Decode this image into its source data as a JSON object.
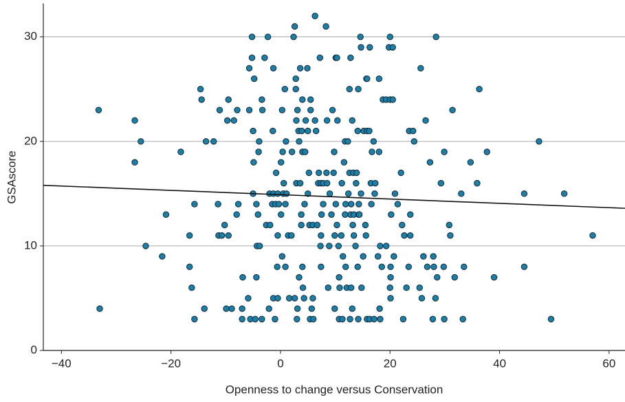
{
  "chart_data": {
    "type": "scatter",
    "x_label": "Openness to change versus Conservation",
    "y_label": "GSAscore",
    "xlim": [
      -43.3,
      62.9
    ],
    "ylim": [
      0,
      33.2
    ],
    "xticks": [
      {
        "value": -40,
        "label": "−40"
      },
      {
        "value": -20,
        "label": "−20"
      },
      0,
      20,
      40,
      60
    ],
    "yticks": [
      0,
      10,
      20,
      30
    ],
    "grid": true,
    "color": "#1f7ea6",
    "fit_line": {
      "x": [
        -43.3,
        62.9
      ],
      "y": [
        15.8,
        13.6
      ],
      "color": "#111111"
    },
    "x": [
      -33,
      -33.2,
      -26.6,
      -25.5,
      -26.6,
      -24.6,
      -21.6,
      -20.9,
      -18.2,
      -16.6,
      -16.6,
      -16.2,
      -15.7,
      -15.7,
      -14.6,
      -14.4,
      -13.9,
      -13.6,
      -12.2,
      -11.4,
      -11.3,
      -11.1,
      -10.7,
      -10.2,
      -9.9,
      -9.7,
      -9.5,
      -9.5,
      -8.9,
      -8.5,
      -8.0,
      -7.9,
      -7.7,
      -7.0,
      -7.0,
      -6.9,
      -5.9,
      -5.7,
      -5.7,
      -5.5,
      -5.2,
      -5.2,
      -5.0,
      -4.9,
      -5,
      -4.8,
      -4.6,
      -4.4,
      -4.4,
      -4.3,
      -4.1,
      -4.0,
      -3.9,
      -3.8,
      -3.4,
      -3.4,
      -3.3,
      -2.9,
      -2.6,
      -2.3,
      -2.1,
      -2.0,
      -1.9,
      -1.5,
      -1.4,
      -1.3,
      -1.3,
      -1.3,
      -1.0,
      -0.9,
      -0.8,
      -0.6,
      -0.5,
      -0.5,
      -0.5,
      -0.3,
      0.1,
      0.1,
      0.3,
      0.3,
      0.4,
      0.5,
      0.6,
      0.8,
      0.9,
      0.9,
      1.0,
      1.1,
      1.4,
      1.6,
      2.0,
      2.1,
      2.4,
      2.6,
      2.6,
      2.8,
      2.8,
      2.9,
      2.9,
      3.0,
      3.1,
      3.1,
      3.3,
      3.4,
      3.4,
      3.6,
      3.6,
      3.8,
      3.8,
      3.9,
      4.0,
      4.0,
      4.0,
      4.1,
      4.3,
      4.4,
      4.5,
      4.6,
      4.9,
      5,
      5,
      5.2,
      5.3,
      5.4,
      5.5,
      5.5,
      5.7,
      5.9,
      5.9,
      6.0,
      6.3,
      6.3,
      6.5,
      6.7,
      6.9,
      7.0,
      7.2,
      7.3,
      7.4,
      7.4,
      7.4,
      7.5,
      7.8,
      7.8,
      8.3,
      8.4,
      8.5,
      8.5,
      8.7,
      8.9,
      9.0,
      9.3,
      9.5,
      9.7,
      9.8,
      9.9,
      9.9,
      10.1,
      10.1,
      10.3,
      10.3,
      10.4,
      10.6,
      10.7,
      10.7,
      10.8,
      11.1,
      11.2,
      11.3,
      11.4,
      11.6,
      11.8,
      11.8,
      11.9,
      11.9,
      12.1,
      12.3,
      12.4,
      12.6,
      12.6,
      12.7,
      12.8,
      12.8,
      12.9,
      12.9,
      13.1,
      13.1,
      13.2,
      13.3,
      13.4,
      13.4,
      13.7,
      13.8,
      13.9,
      14.1,
      14.1,
      14.2,
      14.2,
      14.3,
      14.3,
      14.4,
      14.6,
      14.7,
      14.7,
      14.8,
      15.1,
      15.2,
      15.5,
      15.6,
      15.7,
      15.8,
      15.8,
      15.8,
      16.2,
      16.3,
      16.3,
      16.5,
      16.6,
      16.7,
      17.0,
      17.1,
      17.2,
      17.3,
      17.8,
      18.0,
      18.0,
      18.1,
      18.2,
      18.2,
      18.5,
      18.7,
      19.3,
      19.3,
      19.8,
      20.0,
      20.0,
      20.0,
      20.1,
      20.1,
      20.1,
      20.2,
      20.5,
      20.5,
      20.7,
      20.9,
      21.4,
      22.0,
      22.2,
      22.4,
      22.6,
      23.0,
      23.4,
      23.5,
      23.7,
      23.7,
      24.2,
      24.4,
      25.4,
      25.6,
      25.8,
      26.1,
      26.5,
      26.8,
      27.3,
      27.8,
      27.9,
      28.0,
      28.3,
      28.4,
      28.6,
      29.3,
      29.8,
      29.9,
      29.9,
      30.8,
      31.0,
      31.4,
      31.8,
      33.0,
      33.3,
      33.5,
      34.7,
      35.9,
      36.3,
      37.7,
      39.0,
      44.5,
      44.5,
      47.2,
      49.4,
      51.8,
      57.0
    ],
    "y": [
      4,
      23,
      22,
      20,
      18,
      10,
      9,
      13,
      19,
      11,
      8,
      6,
      3,
      14,
      25,
      24,
      4,
      20,
      20,
      14,
      11,
      23,
      11,
      12,
      4,
      22,
      24,
      11,
      4,
      22,
      13,
      23,
      14,
      4,
      3,
      7,
      5,
      23,
      27,
      3,
      30,
      28,
      21,
      18,
      15,
      26,
      3,
      14,
      7,
      10,
      13,
      19,
      20,
      10,
      3,
      24,
      23,
      28,
      12,
      30,
      4,
      15,
      12,
      14,
      21,
      27,
      5,
      15,
      3,
      14,
      17,
      8,
      5,
      11,
      15,
      14,
      18,
      13,
      9,
      23,
      19,
      15,
      16,
      25,
      8,
      14,
      20,
      15,
      11,
      5,
      11,
      19,
      30,
      31,
      5,
      26,
      25,
      22,
      16,
      3,
      4,
      23,
      21,
      20,
      7,
      27,
      16,
      12,
      13,
      21,
      19,
      8,
      24,
      6,
      5,
      14,
      19,
      22,
      27,
      15,
      21,
      17,
      12,
      3,
      23,
      24,
      4,
      12,
      5,
      3,
      32,
      22,
      21,
      12,
      16,
      17,
      28,
      10,
      16,
      8,
      11,
      13,
      16,
      14,
      31,
      17,
      22,
      16,
      6,
      10,
      15,
      13,
      23,
      17,
      19,
      11,
      4,
      28,
      14,
      28,
      12,
      22,
      10,
      7,
      3,
      6,
      11,
      16,
      3,
      9,
      18,
      13,
      20,
      8,
      14,
      6,
      20,
      15,
      25,
      17,
      3,
      28,
      13,
      14,
      6,
      4,
      22,
      12,
      17,
      13,
      11,
      10,
      16,
      17,
      8,
      21,
      25,
      3,
      14,
      13,
      13,
      30,
      29,
      15,
      6,
      9,
      21,
      12,
      11,
      26,
      21,
      3,
      26,
      21,
      29,
      3,
      16,
      14,
      19,
      20,
      3,
      15,
      16,
      9,
      26,
      19,
      4,
      10,
      3,
      8,
      24,
      10,
      24,
      29,
      30,
      24,
      6,
      8,
      5,
      7,
      13,
      24,
      29,
      9,
      15,
      14,
      17,
      12,
      3,
      11,
      6,
      8,
      21,
      13,
      11,
      21,
      20,
      6,
      27,
      5,
      9,
      22,
      8,
      18,
      3,
      9,
      8,
      5,
      30,
      7,
      16,
      8,
      3,
      19,
      12,
      11,
      23,
      7,
      15,
      3,
      8,
      18,
      16,
      25,
      19,
      7,
      8,
      15,
      20,
      3,
      15,
      11
    ]
  }
}
